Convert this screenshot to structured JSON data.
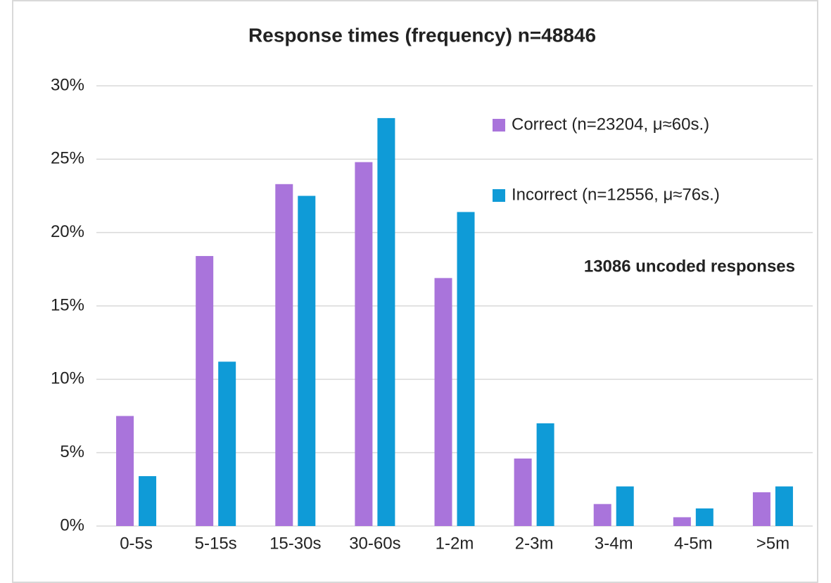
{
  "chart_data": {
    "type": "bar",
    "title": "Response times (frequency) n=48846",
    "annotation": "13086 uncoded responses",
    "categories": [
      "0-5s",
      "5-15s",
      "15-30s",
      "30-60s",
      "1-2m",
      "2-3m",
      "3-4m",
      "4-5m",
      ">5m"
    ],
    "series": [
      {
        "name": "Correct (n=23204, μ≈60s.)",
        "color": "#a974db",
        "values": [
          7.5,
          18.4,
          23.3,
          24.8,
          16.9,
          4.6,
          1.5,
          0.6,
          2.3
        ]
      },
      {
        "name": "Incorrect (n=12556, μ≈76s.)",
        "color": "#0f9bd7",
        "values": [
          3.4,
          11.2,
          22.5,
          27.8,
          21.4,
          7.0,
          2.7,
          1.2,
          2.7
        ]
      }
    ],
    "ylim": [
      0,
      30
    ],
    "yticks": [
      {
        "value": 0,
        "label": "0%"
      },
      {
        "value": 5,
        "label": "5%"
      },
      {
        "value": 10,
        "label": "10%"
      },
      {
        "value": 15,
        "label": "15%"
      },
      {
        "value": 20,
        "label": "20%"
      },
      {
        "value": 25,
        "label": "25%"
      },
      {
        "value": 30,
        "label": "30%"
      }
    ],
    "grid": true,
    "legend": "top-right"
  }
}
